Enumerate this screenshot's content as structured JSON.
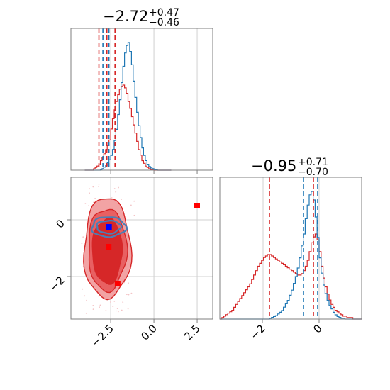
{
  "chart_data": {
    "type": "corner",
    "params": [
      {
        "title_main": "−2.72",
        "title_plus": "+0.47",
        "title_minus": "−0.46"
      },
      {
        "title_main": "−0.95",
        "title_plus": "+0.71",
        "title_minus": "−0.70"
      }
    ],
    "colors": {
      "red": "#d62728",
      "blue": "#1f77b4",
      "red_fill_light": "#f2a3a4",
      "red_fill_dark": "#d62728",
      "grid": "#d0d0d0"
    },
    "x_axis": {
      "range": [
        -4.8,
        3.4
      ],
      "ticks": [
        -2.5,
        0.0,
        2.5
      ],
      "tick_labels": [
        "−2.5",
        "0.0",
        "2.5"
      ]
    },
    "y_axis_corner": {
      "range": [
        -3.5,
        1.5
      ],
      "ticks": [
        0,
        -2
      ],
      "tick_labels": [
        "0",
        "−2"
      ]
    },
    "x_axis_param2": {
      "range": [
        -3.5,
        1.5
      ],
      "ticks": [
        -2,
        0
      ],
      "tick_labels": [
        "−2",
        "0"
      ]
    },
    "reference_lines_param1": [
      2.6
    ],
    "reference_lines_param2": [
      -1.95
    ],
    "quantiles": {
      "red_param1": [
        -3.18,
        -2.72,
        -2.25
      ],
      "blue_param1": [
        -2.95,
        -2.6
      ],
      "red_param2": [
        -1.75,
        -0.2
      ],
      "blue_param2": [
        -0.55,
        -0.05
      ]
    },
    "markers": {
      "red": [
        [
          2.5,
          0.5
        ],
        [
          -2.1,
          -2.25
        ],
        [
          -2.62,
          -0.95
        ]
      ],
      "blue": [
        [
          -2.6,
          -0.25
        ]
      ]
    },
    "hist_param1": {
      "blue": {
        "x_start": -4.0,
        "bin_width": 0.1,
        "counts": [
          0,
          0,
          0,
          0,
          0,
          0,
          0,
          0,
          0,
          1,
          2,
          4,
          6,
          10,
          14,
          20,
          28,
          40,
          55,
          75,
          95,
          118,
          140,
          158,
          168,
          172,
          160,
          142,
          120,
          98,
          78,
          60,
          44,
          30,
          20,
          13,
          8,
          5,
          3,
          2,
          1,
          1,
          0,
          0,
          0,
          0,
          0,
          0,
          0,
          0
        ]
      },
      "red": {
        "x_start": -4.0,
        "bin_width": 0.1,
        "counts": [
          0,
          0,
          0,
          0,
          0,
          2,
          4,
          6,
          8,
          14,
          18,
          24,
          30,
          36,
          44,
          60,
          75,
          88,
          100,
          110,
          118,
          122,
          124,
          120,
          112,
          100,
          90,
          78,
          66,
          54,
          42,
          30,
          22,
          14,
          10,
          6,
          4,
          2,
          1,
          1,
          0,
          0,
          0,
          0,
          0,
          0,
          0,
          0,
          0,
          0
        ]
      }
    },
    "hist_param2": {
      "blue": {
        "x_start": -3.5,
        "bin_width": 0.07,
        "counts": [
          0,
          0,
          0,
          0,
          0,
          0,
          0,
          0,
          0,
          0,
          0,
          0,
          0,
          0,
          0,
          0,
          0,
          0,
          0,
          0,
          0,
          0,
          0,
          0,
          0,
          1,
          2,
          3,
          4,
          6,
          8,
          10,
          14,
          18,
          22,
          28,
          34,
          42,
          50,
          60,
          72,
          86,
          100,
          118,
          134,
          146,
          150,
          140,
          120,
          96,
          72,
          54,
          40,
          30,
          22,
          16,
          12,
          8,
          5,
          3,
          2,
          1,
          1,
          0,
          0,
          0,
          0,
          0,
          0,
          0,
          0,
          0
        ]
      },
      "red": {
        "x_start": -3.5,
        "bin_width": 0.07,
        "counts": [
          0,
          1,
          2,
          3,
          4,
          5,
          6,
          8,
          10,
          12,
          14,
          16,
          18,
          20,
          22,
          24,
          27,
          30,
          33,
          36,
          38,
          40,
          42,
          43,
          44,
          44,
          43,
          42,
          41,
          40,
          39,
          38,
          37,
          36,
          35,
          34,
          33,
          32,
          31,
          30,
          30,
          31,
          33,
          36,
          40,
          46,
          52,
          56,
          58,
          54,
          46,
          36,
          28,
          22,
          17,
          13,
          10,
          8,
          6,
          5,
          4,
          3,
          2,
          2,
          1,
          1,
          1,
          0,
          0,
          0,
          0,
          0
        ]
      }
    }
  }
}
